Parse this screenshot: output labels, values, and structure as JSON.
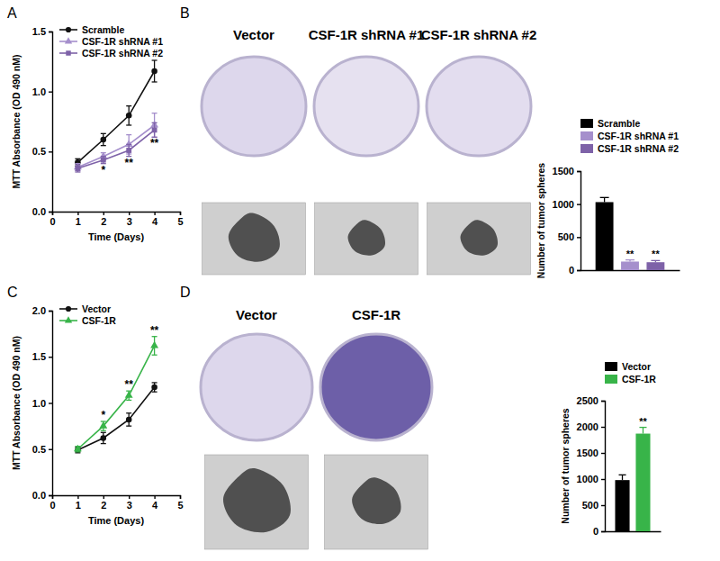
{
  "chart_data": [
    {
      "type": "line",
      "title": "A",
      "x": [
        1,
        2,
        3,
        4
      ],
      "xlim": [
        0,
        5
      ],
      "xticks": [
        0,
        1,
        2,
        3,
        4,
        5
      ],
      "ylim": [
        0,
        1.5
      ],
      "yticks": [
        {
          "value": 0,
          "label": "0.0"
        },
        {
          "value": 0.5,
          "label": "0.5"
        },
        {
          "value": 1,
          "label": "1.0"
        },
        {
          "value": 1.5,
          "label": "1.5"
        }
      ],
      "x_label": "Time (Days)",
      "y_label": "MTT Absorbance (OD 490 nM)",
      "legend": "upper left",
      "series": [
        {
          "name": "Scramble",
          "color": "#111111",
          "marker": "circle",
          "values": [
            0.41,
            0.6,
            0.8,
            1.17
          ],
          "errors": [
            0.03,
            0.05,
            0.08,
            0.09
          ]
        },
        {
          "name": "CSF-1R shRNA #1",
          "color": "#a58fcc",
          "marker": "triangle",
          "values": [
            0.37,
            0.46,
            0.56,
            0.72
          ],
          "errors": [
            0.03,
            0.03,
            0.08,
            0.1
          ]
        },
        {
          "name": "CSF-1R shRNA #2",
          "color": "#7e62a8",
          "marker": "square",
          "values": [
            0.36,
            0.43,
            0.51,
            0.68
          ],
          "errors": [
            0.03,
            0.03,
            0.05,
            0.06
          ],
          "significance": [
            null,
            "*",
            "**",
            "**"
          ]
        }
      ]
    },
    {
      "type": "bar",
      "title": "B",
      "annotations": [
        "Vector",
        "CSF-1R shRNA #1",
        "CSF-1R shRNA #2"
      ],
      "categories": [
        null
      ],
      "ylim": [
        0,
        1500
      ],
      "yticks": [
        0,
        500,
        1000,
        1500
      ],
      "y_label": "Number of tumor spheres",
      "legend": "upper right",
      "tick_labels": "y",
      "series": [
        {
          "name": "Scramble",
          "color": "#000000",
          "values": [
            1030
          ],
          "errors": [
            70
          ]
        },
        {
          "name": "CSF-1R shRNA #1",
          "color": "#a58fcc",
          "values": [
            130
          ],
          "errors": [
            25
          ],
          "significance": [
            "**"
          ]
        },
        {
          "name": "CSF-1R shRNA #2",
          "color": "#7e62a8",
          "values": [
            120
          ],
          "errors": [
            25
          ],
          "significance": [
            "**"
          ]
        }
      ]
    },
    {
      "type": "line",
      "title": "C",
      "x": [
        1,
        2,
        3,
        4
      ],
      "xlim": [
        0,
        5
      ],
      "xticks": [
        0,
        1,
        2,
        3,
        4,
        5
      ],
      "ylim": [
        0,
        2
      ],
      "yticks": [
        {
          "value": 0,
          "label": "0.0"
        },
        {
          "value": 0.5,
          "label": "0.5"
        },
        {
          "value": 1,
          "label": "1.0"
        },
        {
          "value": 1.5,
          "label": "1.5"
        },
        {
          "value": 2,
          "label": "2.0"
        }
      ],
      "x_label": "Time (Days)",
      "y_label": "MTT Absorbance (OD 490 nM)",
      "legend": "upper left",
      "series": [
        {
          "name": "Vector",
          "color": "#111111",
          "marker": "circle",
          "values": [
            0.49,
            0.62,
            0.82,
            1.17
          ],
          "errors": [
            0.03,
            0.06,
            0.07,
            0.05
          ]
        },
        {
          "name": "CSF-1R",
          "color": "#38b449",
          "marker": "triangle",
          "values": [
            0.5,
            0.75,
            1.08,
            1.62
          ],
          "errors": [
            0.03,
            0.05,
            0.05,
            0.1
          ],
          "significance": [
            null,
            "*",
            "**",
            "**"
          ]
        }
      ]
    },
    {
      "type": "bar",
      "title": "D",
      "annotations": [
        "Vector",
        "CSF-1R"
      ],
      "categories": [
        null
      ],
      "ylim": [
        0,
        2500
      ],
      "yticks": [
        0,
        500,
        1000,
        1500,
        2000,
        2500
      ],
      "y_label": "Number of tumor spheres",
      "legend": "upper right",
      "tick_labels": "y",
      "series": [
        {
          "name": "Vector",
          "color": "#000000",
          "values": [
            980
          ],
          "errors": [
            100
          ]
        },
        {
          "name": "CSF-1R",
          "color": "#38b449",
          "values": [
            1870
          ],
          "errors": [
            120
          ],
          "significance": [
            "**"
          ]
        }
      ]
    }
  ]
}
